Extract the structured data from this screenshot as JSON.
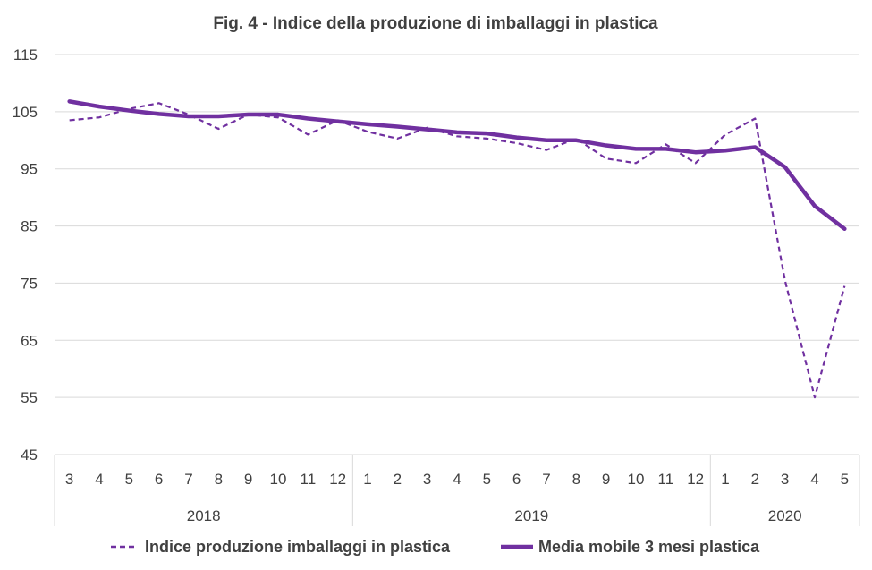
{
  "chart_data": {
    "type": "line",
    "title": "Fig. 4  - Indice della produzione di imballaggi in plastica",
    "xlabel": "",
    "ylabel": "",
    "ylim": [
      45,
      115
    ],
    "yticks": [
      45,
      55,
      65,
      75,
      85,
      95,
      105,
      115
    ],
    "grid": true,
    "legend_position": "bottom",
    "categories": [
      "3",
      "4",
      "5",
      "6",
      "7",
      "8",
      "9",
      "10",
      "11",
      "12",
      "1",
      "2",
      "3",
      "4",
      "5",
      "6",
      "7",
      "8",
      "9",
      "10",
      "11",
      "12",
      "1",
      "2",
      "3",
      "4",
      "5"
    ],
    "year_groups": [
      {
        "label": "2018",
        "count": 10
      },
      {
        "label": "2019",
        "count": 12
      },
      {
        "label": "2020",
        "count": 5
      }
    ],
    "series": [
      {
        "name": "Indice produzione imballaggi in plastica",
        "style": "dashed",
        "color": "#7030a0",
        "values": [
          103.5,
          104.0,
          105.5,
          106.5,
          104.5,
          102.0,
          104.5,
          104.0,
          101.0,
          103.5,
          101.5,
          100.3,
          102.2,
          100.7,
          100.3,
          99.5,
          98.3,
          100.3,
          96.8,
          96.0,
          99.3,
          96.0,
          101.0,
          103.8,
          75.5,
          55.0,
          74.5
        ]
      },
      {
        "name": "Media mobile 3 mesi plastica",
        "style": "solid",
        "color": "#7030a0",
        "values": [
          106.8,
          105.9,
          105.2,
          104.6,
          104.2,
          104.2,
          104.5,
          104.5,
          103.8,
          103.3,
          102.8,
          102.4,
          101.9,
          101.4,
          101.2,
          100.5,
          100.0,
          100.0,
          99.1,
          98.5,
          98.5,
          97.9,
          98.2,
          98.8,
          95.3,
          88.5,
          84.5
        ]
      }
    ]
  }
}
